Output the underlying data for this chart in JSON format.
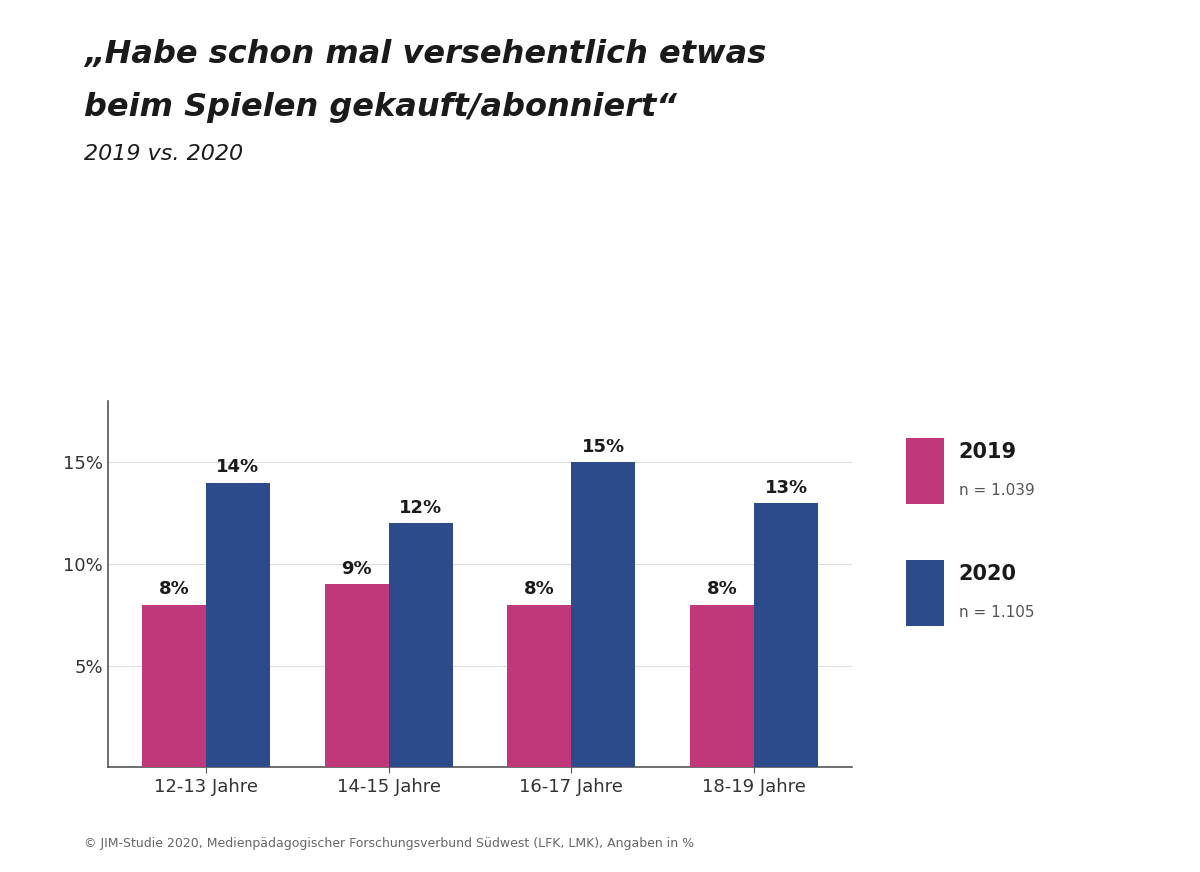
{
  "title_line1": "„Habe schon mal versehentlich etwas",
  "title_line2": "beim Spielen gekauft/abonniert“",
  "subtitle": "2019 vs. 2020",
  "categories": [
    "12-13 Jahre",
    "14-15 Jahre",
    "16-17 Jahre",
    "18-19 Jahre"
  ],
  "values_2019": [
    8,
    9,
    8,
    8
  ],
  "values_2020": [
    14,
    12,
    15,
    13
  ],
  "color_2019": "#c0387a",
  "color_2020": "#2d4a8a",
  "legend_2019_label": "2019",
  "legend_2019_n": "n = 1.039",
  "legend_2020_label": "2020",
  "legend_2020_n": "n = 1.105",
  "yticks": [
    5,
    10,
    15
  ],
  "ytick_labels": [
    "5%",
    "10%",
    "15%"
  ],
  "ylim": [
    0,
    18
  ],
  "bar_width": 0.35,
  "background_color": "#ffffff",
  "footer": "© JIM-Studie 2020, Medienpädagogischer Forschungsverbund Südwest (LFK, LMK), Angaben in %"
}
